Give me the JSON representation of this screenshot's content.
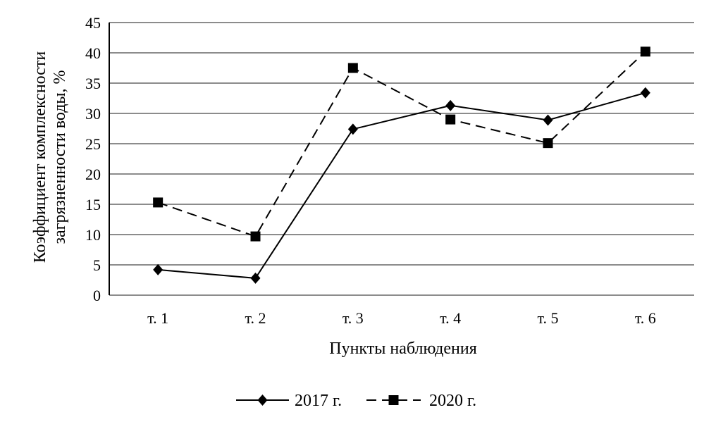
{
  "chart_data": {
    "type": "line",
    "categories": [
      "т. 1",
      "т. 2",
      "т. 3",
      "т. 4",
      "т. 5",
      "т. 6"
    ],
    "series": [
      {
        "name": "2017 г.",
        "values": [
          4.2,
          2.8,
          27.4,
          31.3,
          28.9,
          33.4
        ],
        "style": "solid",
        "marker": "diamond"
      },
      {
        "name": "2020 г.",
        "values": [
          15.3,
          9.7,
          37.5,
          29.0,
          25.1,
          40.2
        ],
        "style": "dashed",
        "marker": "square"
      }
    ],
    "xlabel": "Пункты наблюдения",
    "ylabel": [
      "Коэффициент комплексности",
      "загрязненности воды, %"
    ],
    "ylim": [
      0,
      45
    ],
    "yticks": [
      0,
      5,
      10,
      15,
      20,
      25,
      30,
      35,
      40,
      45
    ],
    "grid": true,
    "legend_position": "bottom"
  }
}
